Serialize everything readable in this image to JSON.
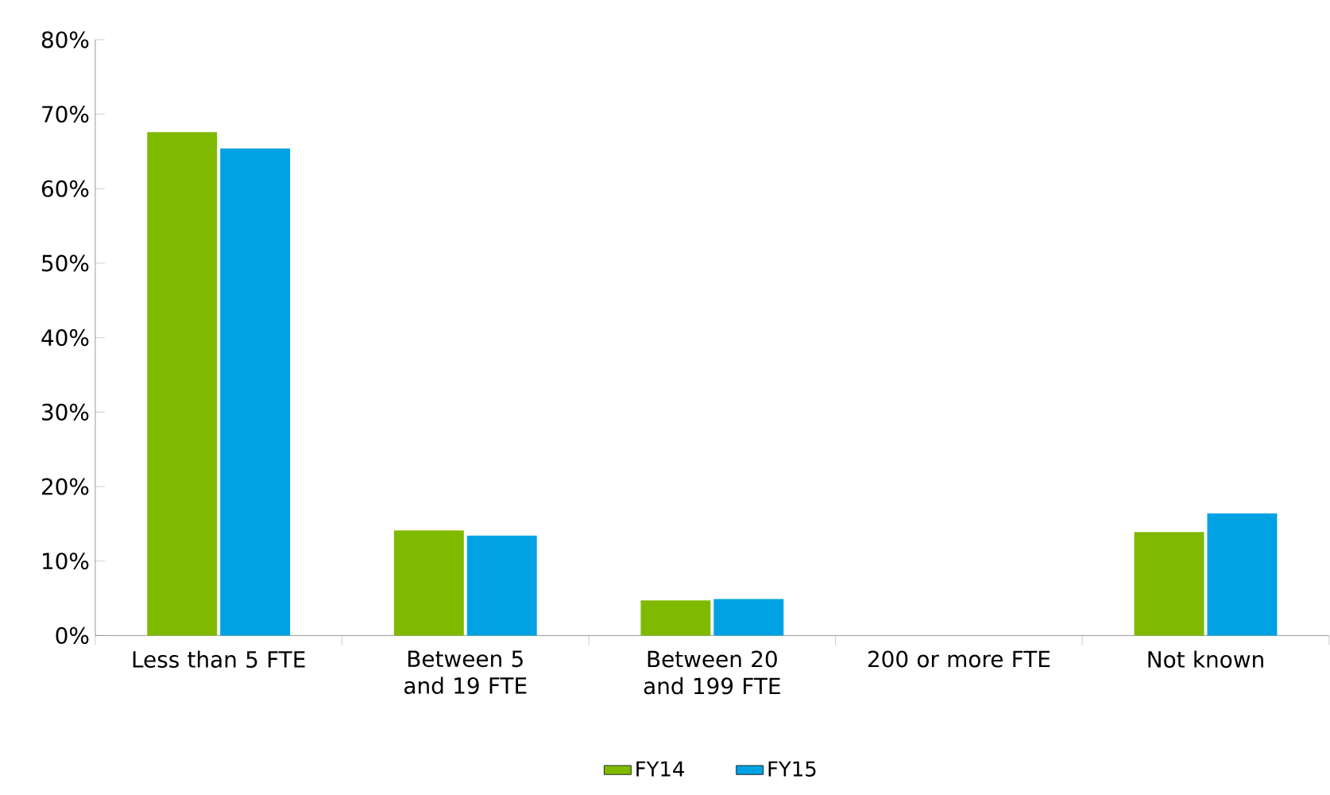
{
  "chart_data": {
    "type": "bar",
    "categories": [
      "Less than 5 FTE",
      "Between 5 and 19 FTE",
      "Between 20 and 199 FTE",
      "200 or more FTE",
      "Not known"
    ],
    "series": [
      {
        "name": "FY14",
        "color": "#7fba00",
        "values": [
          67.6,
          14.1,
          4.7,
          0,
          13.9
        ]
      },
      {
        "name": "FY15",
        "color": "#00a2e3",
        "values": [
          65.4,
          13.4,
          4.9,
          0,
          16.4
        ]
      }
    ],
    "ylim": [
      0,
      80
    ],
    "yticks": [
      {
        "value": 0,
        "label": "0%"
      },
      {
        "value": 10,
        "label": "10%"
      },
      {
        "value": 20,
        "label": "20%"
      },
      {
        "value": 30,
        "label": "30%"
      },
      {
        "value": 40,
        "label": "40%"
      },
      {
        "value": 50,
        "label": "50%"
      },
      {
        "value": 60,
        "label": "60%"
      },
      {
        "value": 70,
        "label": "70%"
      },
      {
        "value": 80,
        "label": "80%"
      }
    ],
    "grid": false,
    "legend": "bottom"
  }
}
